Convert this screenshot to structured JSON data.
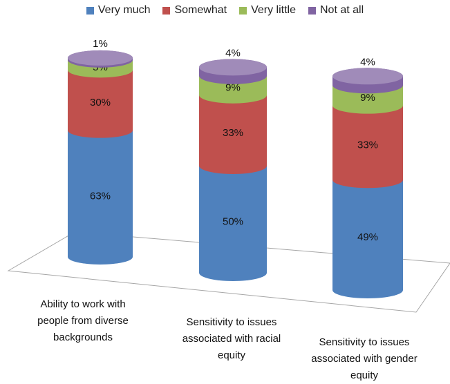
{
  "chart_data": {
    "type": "stacked-cylinder",
    "categories": [
      "Ability to work with people from diverse backgrounds",
      "Sensitivity to issues associated with racial equity",
      "Sensitivity to issues associated with gender equity"
    ],
    "series": [
      {
        "name": "Very much",
        "color": "#4f81bd",
        "values": [
          63,
          50,
          49
        ],
        "value_labels": [
          "63%",
          "50%",
          "49%"
        ]
      },
      {
        "name": "Somewhat",
        "color": "#c0504d",
        "values": [
          30,
          33,
          33
        ],
        "value_labels": [
          "30%",
          "33%",
          "33%"
        ]
      },
      {
        "name": "Very little",
        "color": "#9bbb59",
        "values": [
          5,
          9,
          9
        ],
        "value_labels": [
          "5%",
          "9%",
          "9%"
        ]
      },
      {
        "name": "Not at all",
        "color": "#8064a2",
        "values": [
          1,
          4,
          4
        ],
        "value_labels": [
          "1%",
          "4%",
          "4%"
        ]
      }
    ],
    "legend": "top"
  }
}
